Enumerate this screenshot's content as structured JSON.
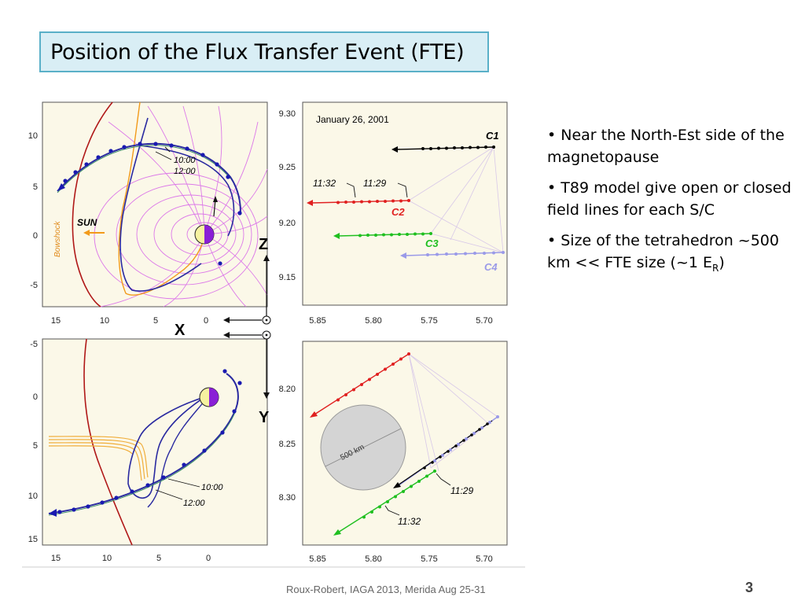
{
  "slide": {
    "title": "Position of the Flux Transfer Event (FTE)",
    "footer": "Roux-Robert, IAGA 2013, Merida Aug 25-31",
    "page_number": "3"
  },
  "bullets": [
    {
      "text": "• Near the North-Est side of the magnetopause"
    },
    {
      "text": "• T89 model give open or closed field lines for each S/C"
    },
    {
      "text": "• Size of the tetrahedron ~500 km  << FTE size (~1 E",
      "sub": "R",
      "tail": ")"
    }
  ],
  "figure": {
    "xz_panel": {
      "yticks": [
        "10",
        "5",
        "0",
        "-5"
      ],
      "xticks": [
        "15",
        "10",
        "5",
        "0"
      ],
      "bowshock_label": "Bowshock",
      "sun_label": "SUN",
      "time_labels": [
        "10:00",
        "12:00"
      ]
    },
    "xy_panel": {
      "yticks": [
        "-5",
        "0",
        "5",
        "10",
        "15"
      ],
      "xticks": [
        "15",
        "10",
        "5",
        "0"
      ],
      "time_labels": [
        "10:00",
        "12:00"
      ]
    },
    "axes_labels": {
      "x": "X",
      "z": "Z",
      "y": "Y"
    },
    "zoom_top": {
      "date": "January 26, 2001",
      "yticks": [
        "9.30",
        "9.25",
        "9.20",
        "9.15"
      ],
      "xticks": [
        "5.85",
        "5.80",
        "5.75",
        "5.70"
      ],
      "spacecraft": [
        "C1",
        "C2",
        "C3",
        "C4"
      ],
      "time_labels": [
        "11:32",
        "11:29"
      ]
    },
    "zoom_bottom": {
      "yticks": [
        "8.20",
        "8.25",
        "8.30"
      ],
      "xticks": [
        "5.85",
        "5.80",
        "5.75",
        "5.70"
      ],
      "scale_label": "500 km",
      "time_labels": [
        "11:29",
        "11:32"
      ]
    },
    "colors": {
      "c1": "#000000",
      "c2": "#e02020",
      "c3": "#1fbf1f",
      "c4": "#9a9ae8",
      "field": "#d96be8",
      "bowshock": "#b01818",
      "orbit": "#2a2aa0",
      "sun_arrow": "#f29a1a"
    }
  }
}
